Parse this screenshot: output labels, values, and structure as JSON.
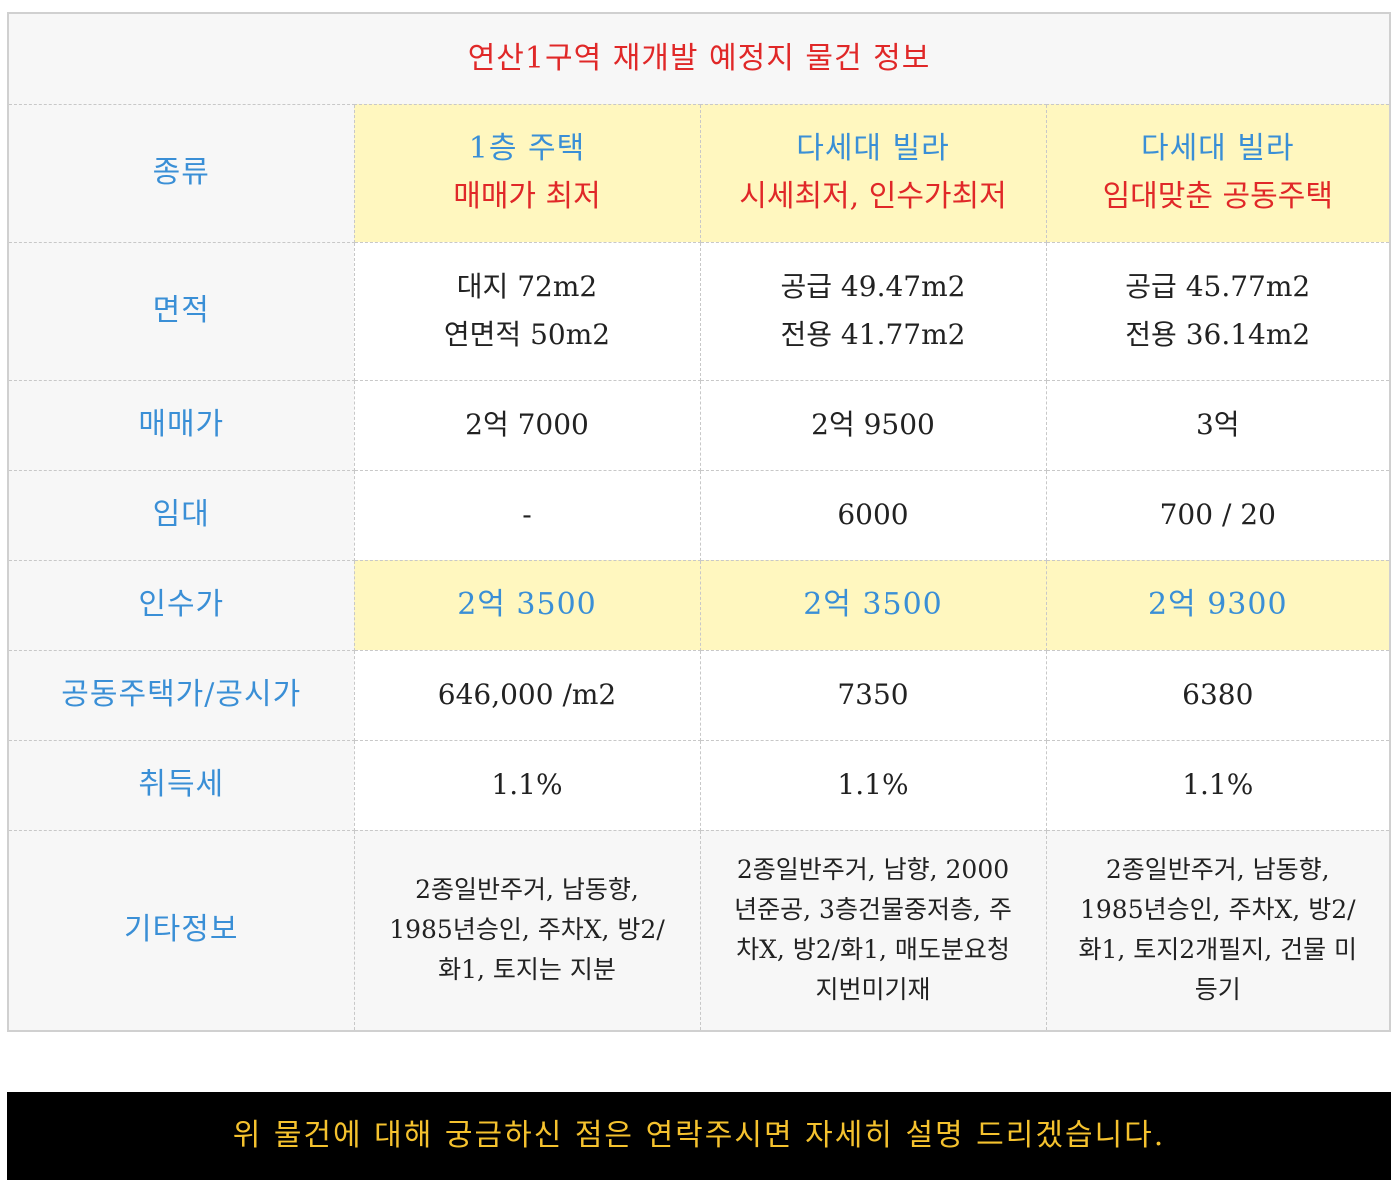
{
  "title": "연산1구역 재개발 예정지  물건 정보",
  "rows": {
    "type": {
      "label": "종류",
      "cols": [
        {
          "line1": "1층 주택",
          "line2": "매매가 최저"
        },
        {
          "line1": "다세대 빌라",
          "line2": "시세최저, 인수가최저"
        },
        {
          "line1": "다세대 빌라",
          "line2": "임대맞춘 공동주택"
        }
      ]
    },
    "area": {
      "label": "면적",
      "cols": [
        {
          "line1": "대지 72m2",
          "line2": "연면적 50m2"
        },
        {
          "line1": "공급 49.47m2",
          "line2": "전용 41.77m2"
        },
        {
          "line1": "공급 45.77m2",
          "line2": "전용 36.14m2"
        }
      ]
    },
    "sale": {
      "label": "매매가",
      "cols": [
        "2억 7000",
        "2억 9500",
        "3억"
      ]
    },
    "rent": {
      "label": "임대",
      "cols": [
        "-",
        "6000",
        "700 / 20"
      ]
    },
    "takeover": {
      "label": "인수가",
      "cols": [
        "2억 3500",
        "2억 3500",
        "2억 9300"
      ]
    },
    "official": {
      "label": "공동주택가/공시가",
      "cols": [
        "646,000 /m2",
        "7350",
        "6380"
      ]
    },
    "tax": {
      "label": "취득세",
      "cols": [
        "1.1%",
        "1.1%",
        "1.1%"
      ]
    },
    "etc": {
      "label": "기타정보",
      "cols": [
        "2종일반주거, 남동향, 1985년승인, 주차X, 방2/화1, 토지는 지분",
        "2종일반주거, 남향, 2000년준공, 3층건물중저층, 주차X, 방2/화1, 매도분요청 지번미기재",
        "2종일반주거, 남동향, 1985년승인, 주차X, 방2/화1, 토지2개필지, 건물 미등기"
      ]
    }
  },
  "banner": "위 물건에 대해 궁금하신 점은 연락주시면 자세히 설명 드리겠습니다.",
  "colors": {
    "title_red": "#e02828",
    "label_blue": "#3a8fd6",
    "highlight_yellow": "#fff7bf",
    "banner_gold": "#f5c22e"
  }
}
